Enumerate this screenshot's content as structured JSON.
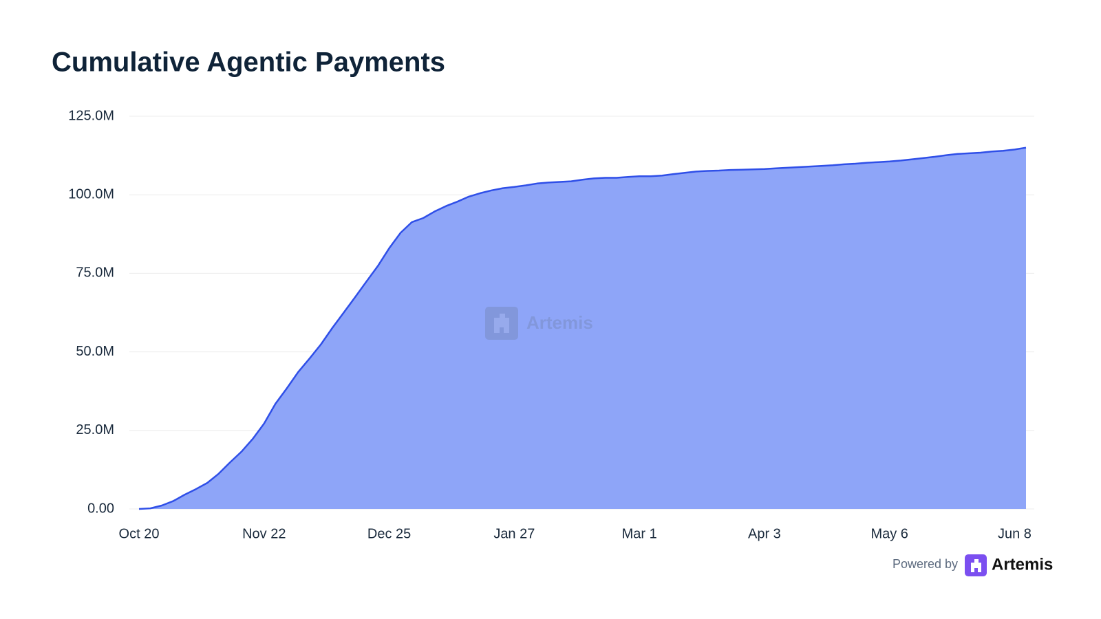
{
  "chart_data": {
    "type": "area",
    "title": "Cumulative Agentic Payments",
    "categories": [
      "Oct 20",
      null,
      null,
      null,
      null,
      null,
      null,
      null,
      null,
      null,
      null,
      "Nov 22",
      null,
      null,
      null,
      null,
      null,
      null,
      null,
      null,
      null,
      null,
      "Dec 25",
      null,
      null,
      null,
      null,
      null,
      null,
      null,
      null,
      null,
      null,
      "Jan 27",
      null,
      null,
      null,
      null,
      null,
      null,
      null,
      null,
      null,
      null,
      "Mar 1",
      null,
      null,
      null,
      null,
      null,
      null,
      null,
      null,
      null,
      null,
      "Apr 3",
      null,
      null,
      null,
      null,
      null,
      null,
      null,
      null,
      null,
      null,
      "May 6",
      null,
      null,
      null,
      null,
      null,
      null,
      null,
      null,
      null,
      null,
      "Jun 8",
      null
    ],
    "series": [
      {
        "name": "Cumulative Agentic Payments",
        "color": "#2f4fe8",
        "fill": "#8ea5f8",
        "values": [
          0,
          0.2,
          1.1,
          2.5,
          4.5,
          6.3,
          8.3,
          11.2,
          14.8,
          18.2,
          22.3,
          27.2,
          33.5,
          38.4,
          43.6,
          47.9,
          52.4,
          57.6,
          62.5,
          67.4,
          72.4,
          77.3,
          83.0,
          87.9,
          91.3,
          92.6,
          94.7,
          96.4,
          97.8,
          99.4,
          100.5,
          101.4,
          102.1,
          102.5,
          103.0,
          103.6,
          103.9,
          104.1,
          104.3,
          104.8,
          105.2,
          105.4,
          105.4,
          105.7,
          105.9,
          105.9,
          106.1,
          106.6,
          107.0,
          107.4,
          107.6,
          107.7,
          107.9,
          108.0,
          108.1,
          108.2,
          108.4,
          108.6,
          108.8,
          109.0,
          109.2,
          109.4,
          109.7,
          109.9,
          110.2,
          110.4,
          110.6,
          110.9,
          111.3,
          111.7,
          112.1,
          112.6,
          113.0,
          113.2,
          113.4,
          113.8,
          114.0,
          114.4,
          115.0
        ]
      }
    ],
    "ylim": [
      0,
      125
    ],
    "yticks": [
      {
        "value": 0,
        "label": "0.00"
      },
      {
        "value": 25,
        "label": "25.0M"
      },
      {
        "value": 50,
        "label": "50.0M"
      },
      {
        "value": 75,
        "label": "75.0M"
      },
      {
        "value": 100,
        "label": "100.0M"
      },
      {
        "value": 125,
        "label": "125.0M"
      }
    ],
    "grid": true,
    "watermark": "Artemis",
    "footer": {
      "powered_by": "Powered by",
      "brand": "Artemis"
    }
  }
}
